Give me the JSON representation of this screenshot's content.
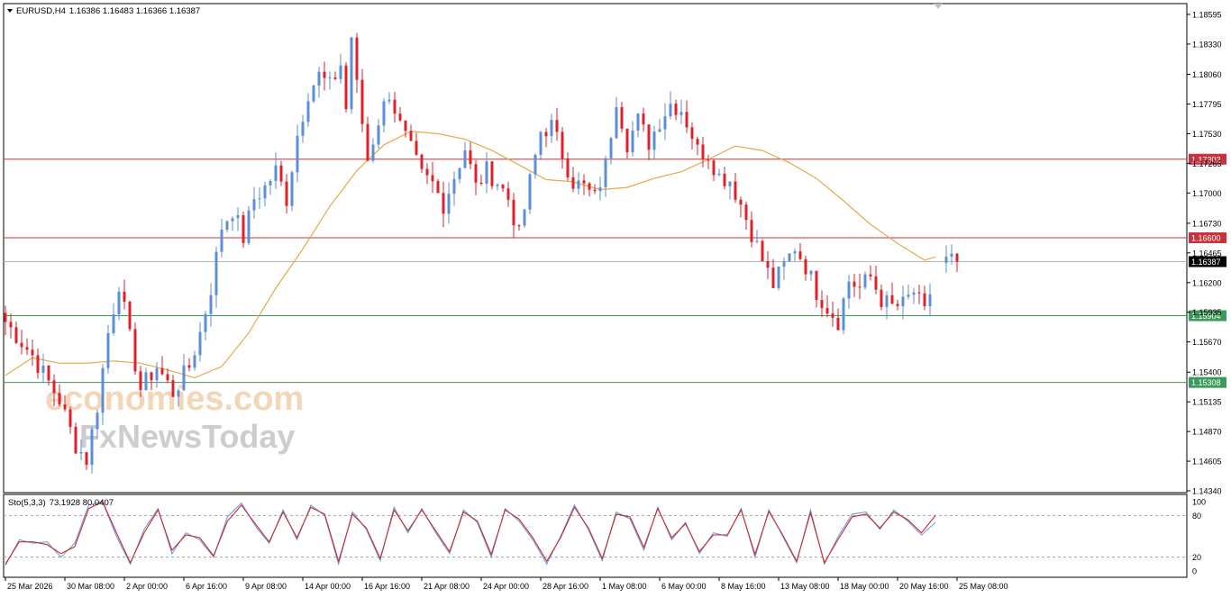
{
  "header": {
    "title": "EURUSD,H4",
    "ohlc": "1.16386 1.16483 1.16366 1.16387"
  },
  "watermark": {
    "line1": "economies.com",
    "line2": "FxNewsToday"
  },
  "colors": {
    "bull": "#5b8fd6",
    "bear": "#e0202a",
    "ma": "#e8a84a",
    "resistance": "#c8323c",
    "support": "#3c9a5a",
    "current": "#b4b4b4",
    "stoch_main": "#6a9fe0",
    "stoch_signal": "#cc2a2a"
  },
  "chart_data": [
    {
      "type": "candlestick",
      "symbol": "EURUSD",
      "timeframe": "H4",
      "ylim": [
        1.1434,
        1.186
      ],
      "y_ticks": [
        "1.18595",
        "1.18330",
        "1.18060",
        "1.17795",
        "1.17530",
        "1.17265",
        "1.17000",
        "1.16730",
        "1.16465",
        "1.16200",
        "1.15935",
        "1.15670",
        "1.15400",
        "1.15135",
        "1.14870",
        "1.14605",
        "1.14340"
      ],
      "x_tick_labels": [
        "25 Mar 2026",
        "30 Mar 08:00",
        "2 Apr 00:00",
        "6 Apr 16:00",
        "9 Apr 08:00",
        "14 Apr 00:00",
        "16 Apr 16:00",
        "21 Apr 08:00",
        "24 Apr 00:00",
        "28 Apr 16:00",
        "1 May 08:00",
        "6 May 00:00",
        "8 May 16:00",
        "13 May 08:00",
        "18 May 00:00",
        "20 May 16:00",
        "25 May 08:00"
      ],
      "price_levels": [
        {
          "label": "1.17302",
          "value": 1.17302,
          "kind": "resistance"
        },
        {
          "label": "1.16600",
          "value": 1.166,
          "kind": "resistance"
        },
        {
          "label": "1.16387",
          "value": 1.16387,
          "kind": "current"
        },
        {
          "label": "1.15904",
          "value": 1.15904,
          "kind": "support"
        },
        {
          "label": "1.15308",
          "value": 1.15308,
          "kind": "support"
        }
      ],
      "close_path": [
        [
          0,
          1.1585
        ],
        [
          5,
          1.1555
        ],
        [
          10,
          1.1515
        ],
        [
          13,
          1.1475
        ],
        [
          15,
          1.1462
        ],
        [
          17,
          1.151
        ],
        [
          19,
          1.1575
        ],
        [
          21,
          1.162
        ],
        [
          23,
          1.157
        ],
        [
          25,
          1.1525
        ],
        [
          28,
          1.1545
        ],
        [
          31,
          1.1522
        ],
        [
          34,
          1.1545
        ],
        [
          36,
          1.1575
        ],
        [
          38,
          1.1615
        ],
        [
          40,
          1.167
        ],
        [
          42,
          1.1685
        ],
        [
          44,
          1.166
        ],
        [
          46,
          1.1695
        ],
        [
          48,
          1.1705
        ],
        [
          50,
          1.172
        ],
        [
          52,
          1.1695
        ],
        [
          54,
          1.1752
        ],
        [
          56,
          1.179
        ],
        [
          58,
          1.1805
        ],
        [
          60,
          1.1795
        ],
        [
          62,
          1.1815
        ],
        [
          63,
          1.1775
        ],
        [
          64,
          1.184
        ],
        [
          65,
          1.1795
        ],
        [
          67,
          1.173
        ],
        [
          69,
          1.1765
        ],
        [
          71,
          1.179
        ],
        [
          73,
          1.176
        ],
        [
          75,
          1.1738
        ],
        [
          77,
          1.1715
        ],
        [
          79,
          1.1708
        ],
        [
          81,
          1.169
        ],
        [
          83,
          1.1715
        ],
        [
          85,
          1.174
        ],
        [
          87,
          1.1705
        ],
        [
          89,
          1.172
        ],
        [
          91,
          1.171
        ],
        [
          93,
          1.1695
        ],
        [
          95,
          1.1662
        ],
        [
          97,
          1.171
        ],
        [
          99,
          1.1755
        ],
        [
          101,
          1.176
        ],
        [
          103,
          1.1735
        ],
        [
          105,
          1.171
        ],
        [
          107,
          1.1705
        ],
        [
          109,
          1.1695
        ],
        [
          111,
          1.1725
        ],
        [
          113,
          1.1785
        ],
        [
          115,
          1.1745
        ],
        [
          117,
          1.1765
        ],
        [
          119,
          1.1745
        ],
        [
          121,
          1.1765
        ],
        [
          123,
          1.178
        ],
        [
          125,
          1.1775
        ],
        [
          127,
          1.1752
        ],
        [
          128,
          1.1738
        ],
        [
          130,
          1.1735
        ],
        [
          132,
          1.1715
        ],
        [
          134,
          1.1712
        ],
        [
          136,
          1.169
        ],
        [
          138,
          1.1665
        ],
        [
          140,
          1.164
        ],
        [
          142,
          1.1618
        ],
        [
          144,
          1.1635
        ],
        [
          146,
          1.1652
        ],
        [
          148,
          1.1635
        ],
        [
          150,
          1.1612
        ],
        [
          152,
          1.1598
        ],
        [
          154,
          1.1586
        ],
        [
          156,
          1.1622
        ],
        [
          158,
          1.1615
        ],
        [
          160,
          1.1625
        ],
        [
          162,
          1.1605
        ],
        [
          164,
          1.1598
        ],
        [
          166,
          1.16
        ],
        [
          168,
          1.1612
        ],
        [
          170,
          1.1592
        ],
        [
          172,
          1.163
        ],
        [
          174,
          1.1638
        ],
        [
          176,
          1.16387
        ]
      ],
      "moving_average": [
        [
          0,
          1.1537
        ],
        [
          5,
          1.1553
        ],
        [
          10,
          1.1548
        ],
        [
          15,
          1.1548
        ],
        [
          20,
          1.155
        ],
        [
          25,
          1.1548
        ],
        [
          30,
          1.1542
        ],
        [
          35,
          1.1535
        ],
        [
          40,
          1.1545
        ],
        [
          45,
          1.1575
        ],
        [
          50,
          1.1615
        ],
        [
          55,
          1.165
        ],
        [
          60,
          1.1688
        ],
        [
          65,
          1.172
        ],
        [
          70,
          1.1743
        ],
        [
          75,
          1.1755
        ],
        [
          80,
          1.1753
        ],
        [
          85,
          1.1748
        ],
        [
          90,
          1.1738
        ],
        [
          95,
          1.1725
        ],
        [
          100,
          1.1712
        ],
        [
          105,
          1.171
        ],
        [
          110,
          1.1703
        ],
        [
          115,
          1.1705
        ],
        [
          120,
          1.1713
        ],
        [
          125,
          1.1719
        ],
        [
          130,
          1.173
        ],
        [
          135,
          1.1742
        ],
        [
          140,
          1.1738
        ],
        [
          145,
          1.1727
        ],
        [
          150,
          1.1713
        ],
        [
          155,
          1.1693
        ],
        [
          160,
          1.1672
        ],
        [
          165,
          1.1655
        ],
        [
          170,
          1.164
        ],
        [
          172,
          1.1643
        ]
      ]
    },
    {
      "type": "line",
      "indicator": "Sto(5,3,3)",
      "readout": "73.1928 80.0407",
      "ylim": [
        0,
        100
      ],
      "y_ticks": [
        "100",
        "80",
        "20",
        "0"
      ],
      "levels": [
        80,
        20
      ],
      "series": [
        {
          "name": "",
          "values": [
            8,
            45,
            40,
            42,
            20,
            40,
            95,
            100,
            50,
            10,
            60,
            90,
            25,
            55,
            45,
            20,
            78,
            98,
            65,
            40,
            88,
            45,
            95,
            80,
            10,
            85,
            60,
            15,
            92,
            55,
            90,
            55,
            25,
            88,
            70,
            20,
            90,
            72,
            45,
            10,
            50,
            95,
            60,
            15,
            85,
            75,
            30,
            92,
            45,
            70,
            25,
            55,
            50,
            90,
            20,
            88,
            50,
            12,
            88,
            10,
            50,
            82,
            85,
            60,
            88,
            72,
            52,
            70
          ]
        },
        {
          "name": "",
          "values": [
            10,
            42,
            42,
            38,
            25,
            35,
            90,
            100,
            55,
            12,
            55,
            88,
            30,
            52,
            48,
            22,
            72,
            95,
            68,
            42,
            85,
            48,
            92,
            82,
            14,
            82,
            62,
            18,
            88,
            58,
            88,
            58,
            28,
            85,
            72,
            24,
            88,
            75,
            48,
            14,
            48,
            92,
            62,
            18,
            82,
            78,
            34,
            90,
            48,
            68,
            28,
            52,
            52,
            88,
            24,
            86,
            52,
            14,
            84,
            12,
            46,
            78,
            82,
            62,
            85,
            74,
            55,
            80
          ]
        }
      ]
    }
  ]
}
